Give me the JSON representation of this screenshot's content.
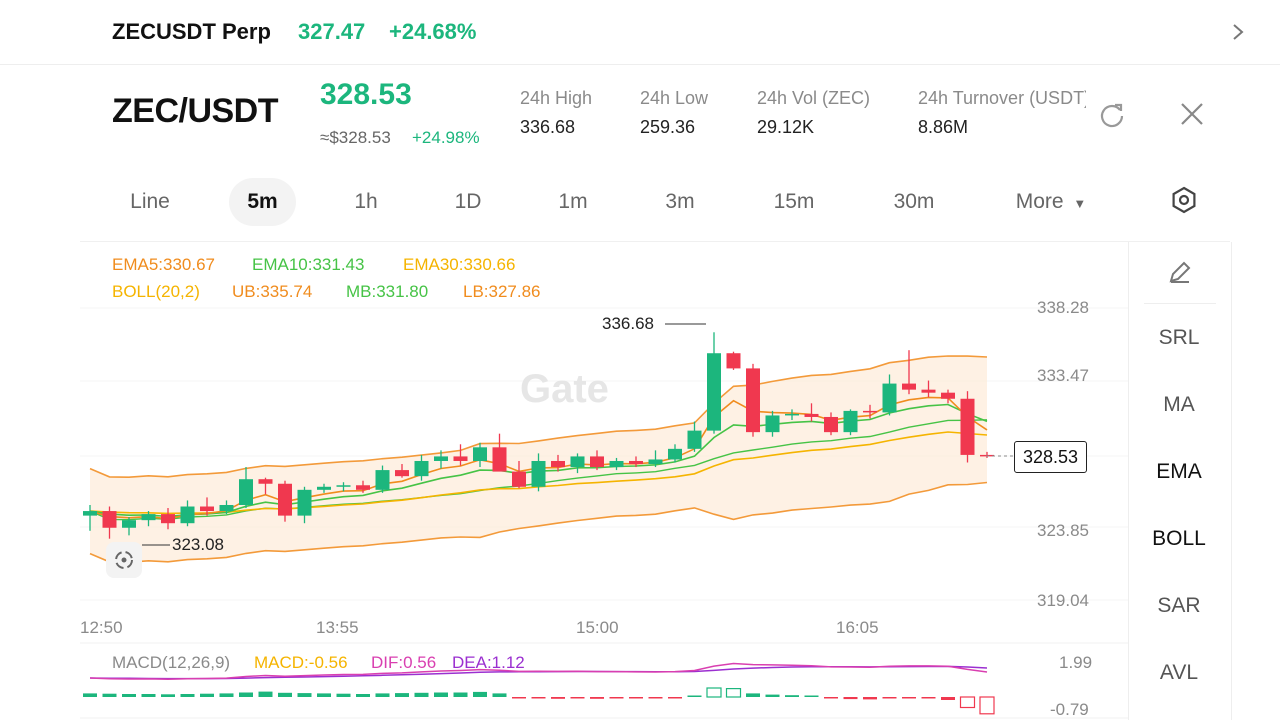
{
  "top_bar": {
    "pair": "ZECUSDT Perp",
    "price": "327.47",
    "change": "+24.68%"
  },
  "header": {
    "pair": "ZEC/USDT",
    "price": "328.53",
    "usd_price": "≈$328.53",
    "change": "+24.98%",
    "stats": [
      {
        "label": "24h   High",
        "value": "336.68"
      },
      {
        "label": "24h   Low",
        "value": "259.36"
      },
      {
        "label": "24h   Vol (ZEC)",
        "value": "29.12K"
      },
      {
        "label": "24h   Turnover (USDT)",
        "value": "8.86M"
      }
    ]
  },
  "tabs": [
    "Line",
    "5m",
    "1h",
    "1D",
    "1m",
    "3m",
    "15m",
    "30m",
    "More"
  ],
  "active_tab": "5m",
  "legend": {
    "ema5": "EMA5:330.67",
    "ema10": "EMA10:331.43",
    "ema30": "EMA30:330.66",
    "boll": "BOLL(20,2)",
    "ub": "UB:335.74",
    "mb": "MB:331.80",
    "lb": "LB:327.86"
  },
  "y_axis": [
    "338.28",
    "333.47",
    "328.53",
    "323.85",
    "319.04"
  ],
  "x_axis": [
    "12:50",
    "13:55",
    "15:00",
    "16:05"
  ],
  "annotations": {
    "high": "336.68",
    "low": "323.08",
    "last": "328.53"
  },
  "macd": {
    "title": "MACD(12,26,9)",
    "macd": "MACD:-0.56",
    "dif": "DIF:0.56",
    "dea": "DEA:1.12",
    "y_top": "1.99",
    "y_bottom": "-0.79"
  },
  "side_indicators": [
    "SRL",
    "MA",
    "EMA",
    "BOLL",
    "SAR",
    "AVL"
  ],
  "active_indicators": [
    "EMA",
    "BOLL"
  ],
  "colors": {
    "up": "#1cb67d",
    "down": "#f0384f",
    "ema5": "#f08c1e",
    "ema10": "#46c346",
    "ema30": "#f5b400",
    "boll_band": "#f39a3a",
    "dif": "#d93fb0",
    "dea": "#9b2fd0"
  },
  "icons": [
    "chevron-right-icon",
    "refresh-icon",
    "close-icon",
    "settings-icon",
    "pencil-icon",
    "chart-toggle-icon"
  ],
  "chart_data": {
    "type": "candlestick",
    "ylim": [
      319.04,
      338.28
    ],
    "candles": [
      {
        "o": 324.6,
        "h": 325.3,
        "l": 323.6,
        "c": 324.9
      },
      {
        "o": 324.9,
        "h": 325.2,
        "l": 323.08,
        "c": 323.8
      },
      {
        "o": 323.8,
        "h": 324.5,
        "l": 323.3,
        "c": 324.3
      },
      {
        "o": 324.3,
        "h": 324.9,
        "l": 323.9,
        "c": 324.7
      },
      {
        "o": 324.7,
        "h": 325.1,
        "l": 323.7,
        "c": 324.1
      },
      {
        "o": 324.1,
        "h": 325.6,
        "l": 323.9,
        "c": 325.2
      },
      {
        "o": 325.2,
        "h": 325.8,
        "l": 324.6,
        "c": 324.9
      },
      {
        "o": 324.9,
        "h": 325.6,
        "l": 324.7,
        "c": 325.3
      },
      {
        "o": 325.3,
        "h": 327.8,
        "l": 325.1,
        "c": 327.0
      },
      {
        "o": 327.0,
        "h": 327.1,
        "l": 326.0,
        "c": 326.7
      },
      {
        "o": 326.7,
        "h": 326.9,
        "l": 324.2,
        "c": 324.6
      },
      {
        "o": 324.6,
        "h": 326.5,
        "l": 324.1,
        "c": 326.3
      },
      {
        "o": 326.3,
        "h": 326.7,
        "l": 326.1,
        "c": 326.5
      },
      {
        "o": 326.5,
        "h": 326.8,
        "l": 326.2,
        "c": 326.6
      },
      {
        "o": 326.6,
        "h": 326.9,
        "l": 326.1,
        "c": 326.3
      },
      {
        "o": 326.3,
        "h": 327.9,
        "l": 326.1,
        "c": 327.6
      },
      {
        "o": 327.6,
        "h": 328.0,
        "l": 327.1,
        "c": 327.2
      },
      {
        "o": 327.2,
        "h": 328.6,
        "l": 326.9,
        "c": 328.2
      },
      {
        "o": 328.2,
        "h": 328.9,
        "l": 327.7,
        "c": 328.5
      },
      {
        "o": 328.5,
        "h": 329.3,
        "l": 327.9,
        "c": 328.2
      },
      {
        "o": 328.2,
        "h": 329.4,
        "l": 327.8,
        "c": 329.1
      },
      {
        "o": 329.1,
        "h": 330.0,
        "l": 327.6,
        "c": 327.5
      },
      {
        "o": 327.5,
        "h": 328.2,
        "l": 326.4,
        "c": 326.5
      },
      {
        "o": 326.5,
        "h": 328.7,
        "l": 326.2,
        "c": 328.2
      },
      {
        "o": 328.2,
        "h": 328.6,
        "l": 327.5,
        "c": 327.8
      },
      {
        "o": 327.8,
        "h": 328.7,
        "l": 327.4,
        "c": 328.5
      },
      {
        "o": 328.5,
        "h": 328.9,
        "l": 327.6,
        "c": 327.8
      },
      {
        "o": 327.8,
        "h": 328.4,
        "l": 327.6,
        "c": 328.2
      },
      {
        "o": 328.2,
        "h": 328.5,
        "l": 327.8,
        "c": 328.0
      },
      {
        "o": 328.0,
        "h": 328.9,
        "l": 327.8,
        "c": 328.3
      },
      {
        "o": 328.3,
        "h": 329.3,
        "l": 328.1,
        "c": 329.0
      },
      {
        "o": 329.0,
        "h": 330.8,
        "l": 328.8,
        "c": 330.2
      },
      {
        "o": 330.2,
        "h": 336.68,
        "l": 330.0,
        "c": 335.3
      },
      {
        "o": 335.3,
        "h": 335.4,
        "l": 334.2,
        "c": 334.3
      },
      {
        "o": 334.3,
        "h": 334.6,
        "l": 329.8,
        "c": 330.1
      },
      {
        "o": 330.1,
        "h": 331.5,
        "l": 329.8,
        "c": 331.2
      },
      {
        "o": 331.2,
        "h": 331.6,
        "l": 330.9,
        "c": 331.3
      },
      {
        "o": 331.3,
        "h": 332.0,
        "l": 330.8,
        "c": 331.1
      },
      {
        "o": 331.1,
        "h": 331.4,
        "l": 329.9,
        "c": 330.1
      },
      {
        "o": 330.1,
        "h": 331.6,
        "l": 329.9,
        "c": 331.5
      },
      {
        "o": 331.5,
        "h": 331.9,
        "l": 331.0,
        "c": 331.4
      },
      {
        "o": 331.4,
        "h": 333.9,
        "l": 331.2,
        "c": 333.3
      },
      {
        "o": 333.3,
        "h": 335.5,
        "l": 332.6,
        "c": 332.9
      },
      {
        "o": 332.9,
        "h": 333.5,
        "l": 332.4,
        "c": 332.7
      },
      {
        "o": 332.7,
        "h": 332.9,
        "l": 332.0,
        "c": 332.3
      },
      {
        "o": 332.3,
        "h": 332.8,
        "l": 328.1,
        "c": 328.6
      },
      {
        "o": 328.6,
        "h": 328.8,
        "l": 328.4,
        "c": 328.53
      }
    ],
    "macd_hist": [
      0.12,
      0.11,
      0.1,
      0.1,
      0.09,
      0.1,
      0.11,
      0.12,
      0.15,
      0.18,
      0.14,
      0.13,
      0.12,
      0.11,
      0.1,
      0.12,
      0.13,
      0.14,
      0.15,
      0.15,
      0.17,
      0.12,
      -0.03,
      -0.05,
      -0.06,
      -0.04,
      -0.06,
      -0.05,
      -0.04,
      -0.03,
      -0.01,
      0.05,
      0.3,
      0.28,
      0.12,
      0.08,
      0.06,
      0.04,
      -0.05,
      -0.07,
      -0.08,
      -0.04,
      -0.02,
      -0.04,
      -0.1,
      -0.35,
      -0.56
    ]
  }
}
